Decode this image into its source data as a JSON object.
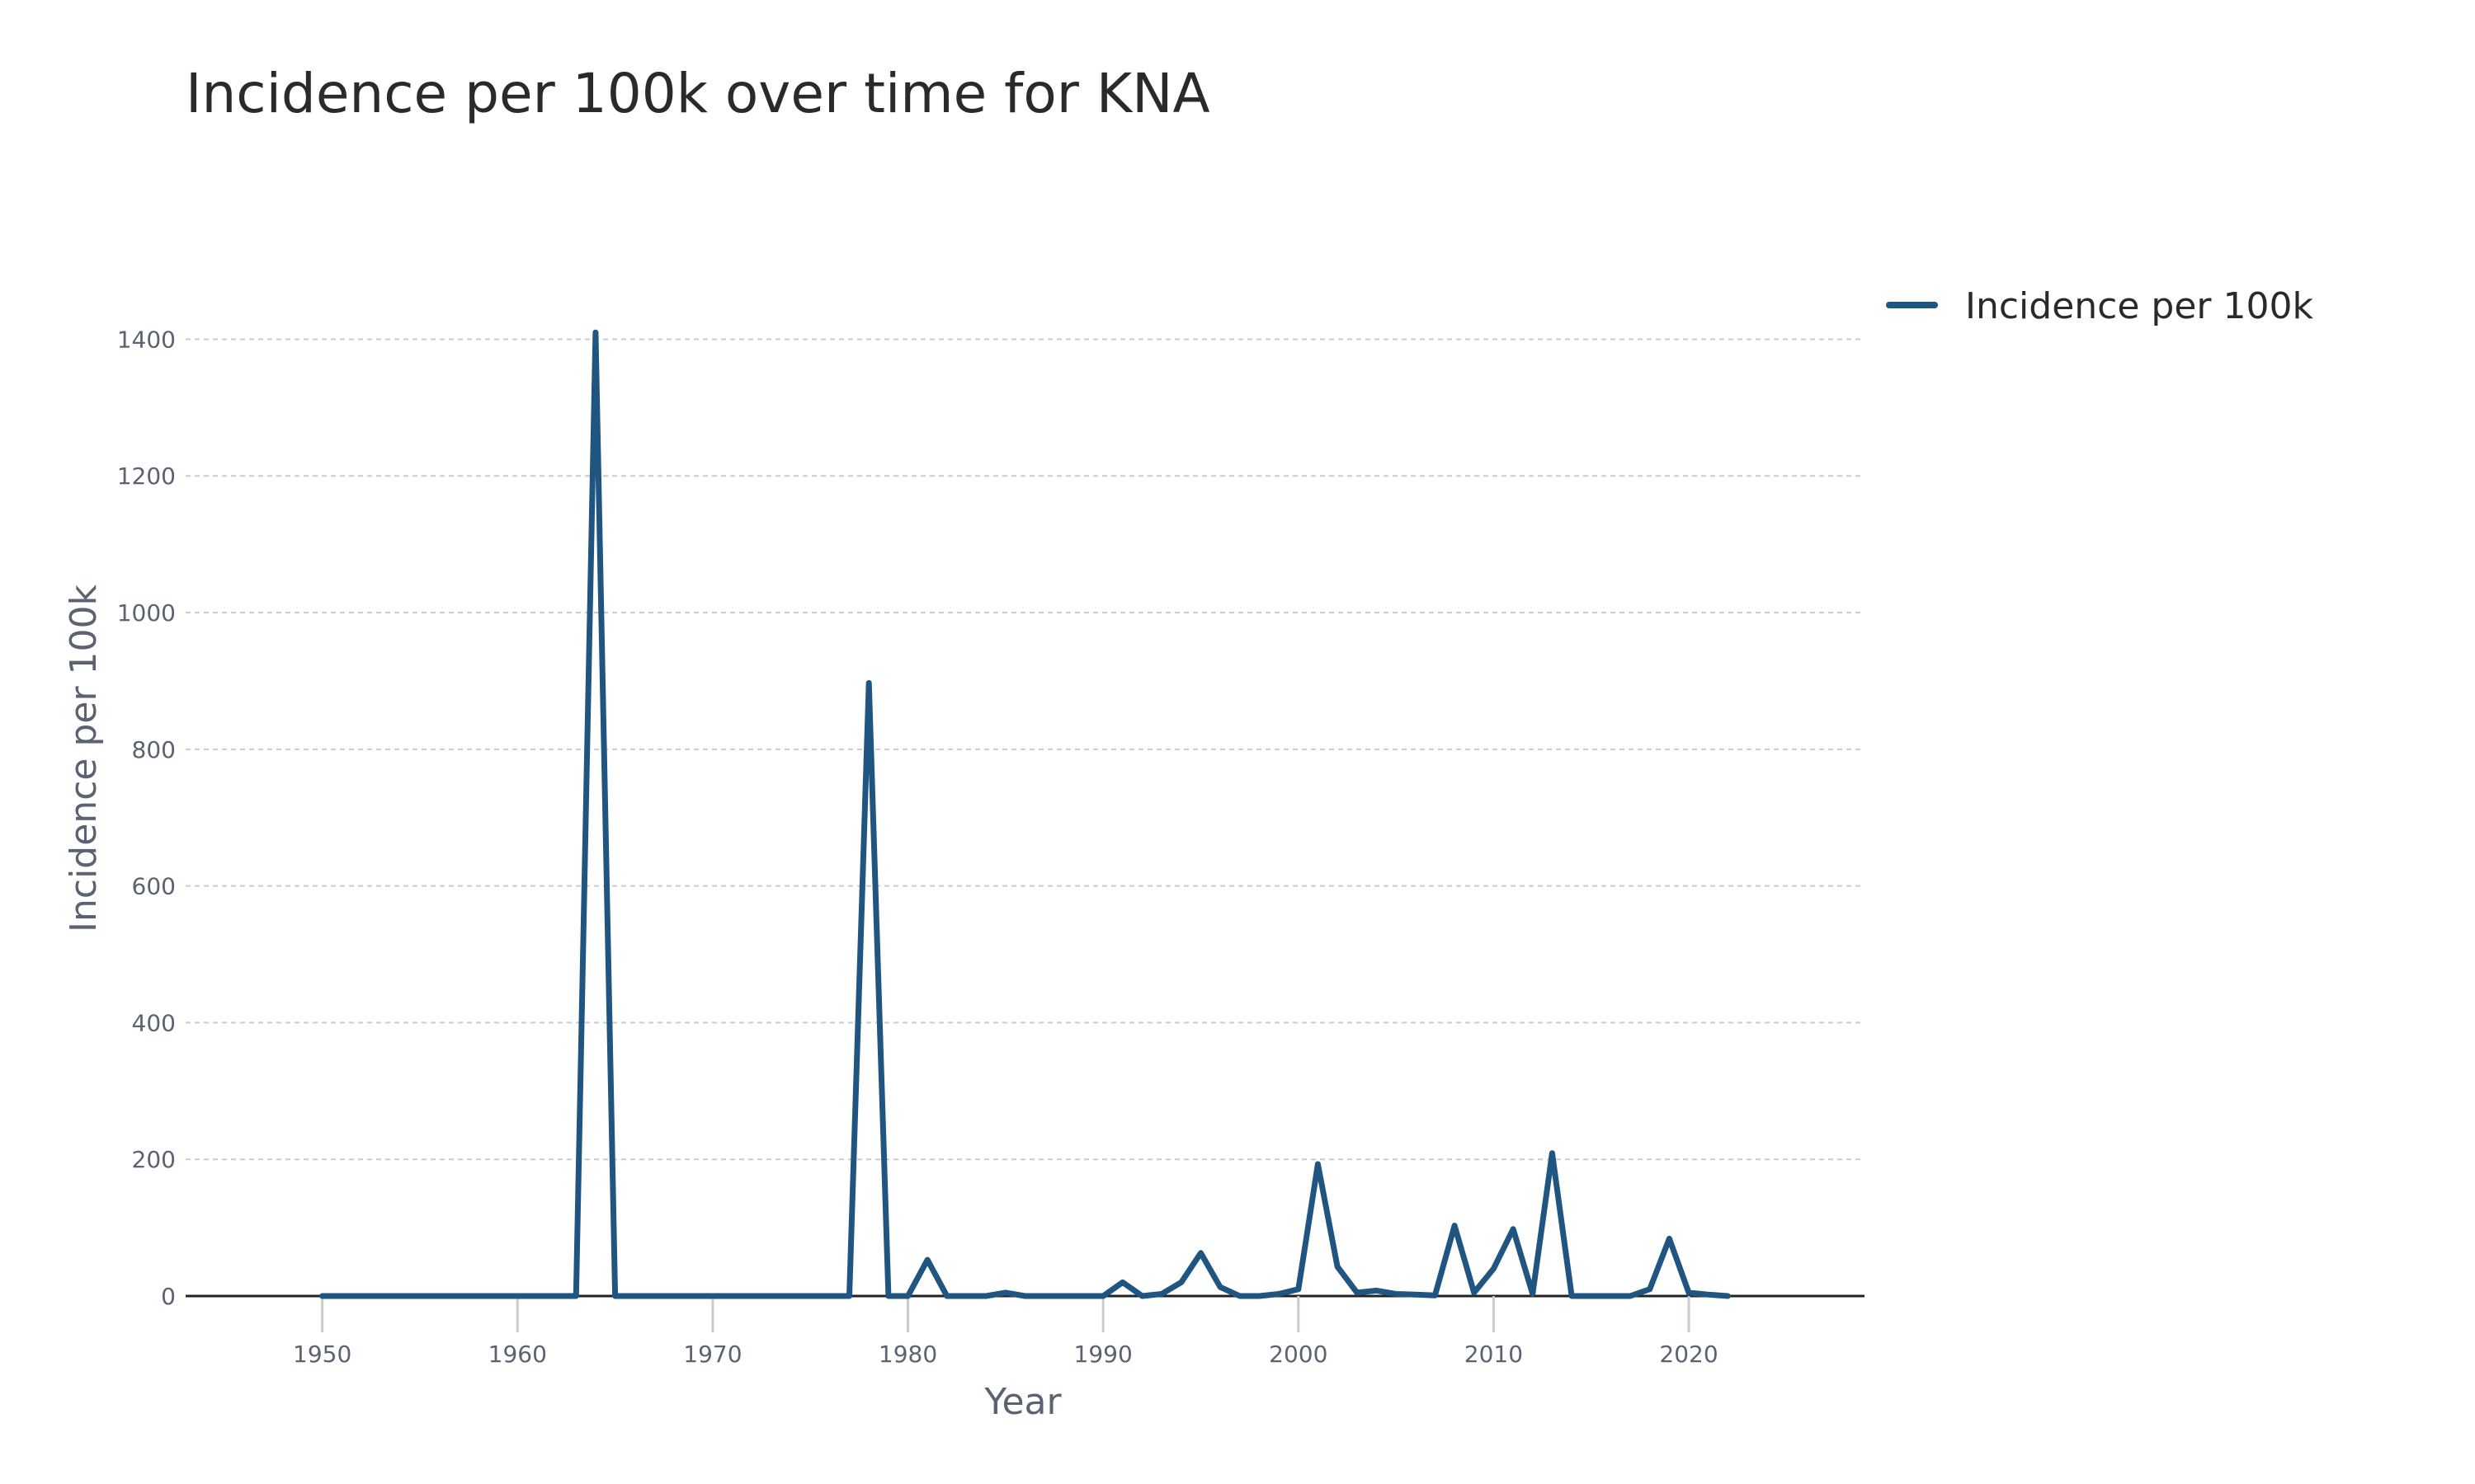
{
  "chart_data": {
    "type": "line",
    "title": "Incidence per 100k over time for KNA",
    "xlabel": "Year",
    "ylabel": "Incidence per 100k",
    "xlim": [
      1943,
      2029
    ],
    "ylim": [
      0,
      1450
    ],
    "x_ticks": [
      1950,
      1960,
      1970,
      1980,
      1990,
      2000,
      2010,
      2020
    ],
    "y_ticks": [
      0,
      200,
      400,
      600,
      800,
      1000,
      1200,
      1400
    ],
    "grid": true,
    "legend_position": "top-right",
    "series": [
      {
        "name": "Incidence per 100k",
        "color": "#1f5580",
        "x": [
          1950,
          1951,
          1952,
          1953,
          1954,
          1955,
          1956,
          1957,
          1958,
          1959,
          1960,
          1961,
          1962,
          1963,
          1964,
          1965,
          1966,
          1967,
          1968,
          1969,
          1970,
          1971,
          1972,
          1973,
          1974,
          1975,
          1976,
          1977,
          1978,
          1979,
          1980,
          1981,
          1982,
          1983,
          1984,
          1985,
          1986,
          1987,
          1988,
          1989,
          1990,
          1991,
          1992,
          1993,
          1994,
          1995,
          1996,
          1997,
          1998,
          1999,
          2000,
          2001,
          2002,
          2003,
          2004,
          2005,
          2006,
          2007,
          2008,
          2009,
          2010,
          2011,
          2012,
          2013,
          2014,
          2015,
          2016,
          2017,
          2018,
          2019,
          2020,
          2021,
          2022
        ],
        "y": [
          0,
          0,
          0,
          0,
          0,
          0,
          0,
          0,
          0,
          0,
          0,
          0,
          0,
          0,
          1410,
          0,
          0,
          0,
          0,
          0,
          0,
          0,
          0,
          0,
          0,
          0,
          0,
          0,
          897,
          0,
          0,
          53,
          0,
          0,
          0,
          5,
          0,
          0,
          0,
          0,
          0,
          20,
          0,
          3,
          20,
          63,
          13,
          0,
          0,
          3,
          10,
          193,
          43,
          5,
          8,
          3,
          2,
          1,
          103,
          5,
          40,
          98,
          3,
          209,
          0,
          0,
          0,
          0,
          10,
          84,
          5,
          2,
          0
        ]
      }
    ]
  }
}
